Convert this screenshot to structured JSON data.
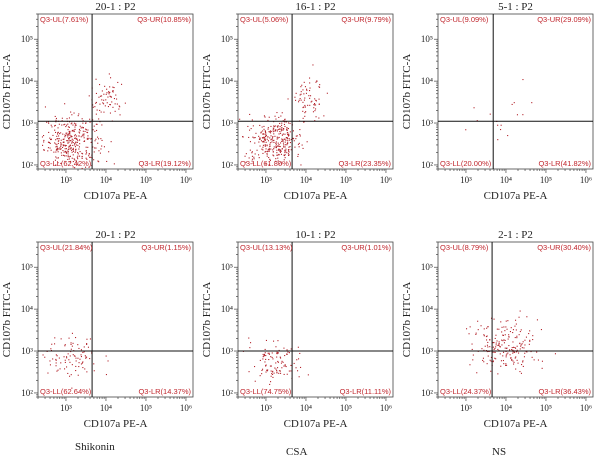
{
  "chart_data": [
    {
      "type": "scatter",
      "title": "20-1 : P2",
      "xlabel": "CD107a PE-A",
      "ylabel": "CD107b FITC-A",
      "x_scale": "log",
      "y_scale": "log",
      "xlim": [
        200,
        1500000
      ],
      "ylim": [
        80,
        400000
      ],
      "x_ticks": [
        "10³",
        "10⁴",
        "10⁵",
        "10⁶"
      ],
      "y_ticks": [
        "10²",
        "10³",
        "10⁴",
        "10⁵"
      ],
      "gate": {
        "x": 4500,
        "y": 1100
      },
      "quadrants": {
        "UL": "Q3-UL(7.61%)",
        "UR": "Q3-UR(10.85%)",
        "LL": "Q3-LL(62.42%)",
        "LR": "Q3-LR(19.12%)"
      },
      "percentages": {
        "UL": 7.61,
        "UR": 10.85,
        "LL": 62.42,
        "LR": 19.12
      },
      "clusters": [
        {
          "x": 1400,
          "y": 380,
          "sx": 0.35,
          "sy": 0.3,
          "n": 360
        },
        {
          "x": 10000,
          "y": 3500,
          "sx": 0.22,
          "sy": 0.25,
          "n": 70
        }
      ]
    },
    {
      "type": "scatter",
      "title": "16-1 : P2",
      "xlabel": "CD107a PE-A",
      "ylabel": "CD107b FITC-A",
      "x_scale": "log",
      "y_scale": "log",
      "xlim": [
        200,
        1500000
      ],
      "ylim": [
        80,
        400000
      ],
      "x_ticks": [
        "10³",
        "10⁴",
        "10⁵",
        "10⁶"
      ],
      "y_ticks": [
        "10²",
        "10³",
        "10⁴",
        "10⁵"
      ],
      "gate": {
        "x": 4500,
        "y": 1100
      },
      "quadrants": {
        "UL": "Q3-UL(5.06%)",
        "UR": "Q3-UR(9.79%)",
        "LL": "Q3-LL(61.80%)",
        "LR": "Q3-LR(23.35%)"
      },
      "percentages": {
        "UL": 5.06,
        "UR": 9.79,
        "LL": 61.8,
        "LR": 23.35
      },
      "clusters": [
        {
          "x": 1600,
          "y": 400,
          "sx": 0.33,
          "sy": 0.28,
          "n": 330
        },
        {
          "x": 11000,
          "y": 3800,
          "sx": 0.2,
          "sy": 0.25,
          "n": 70
        }
      ]
    },
    {
      "type": "scatter",
      "title": "5-1 : P2",
      "xlabel": "CD107a PE-A",
      "ylabel": "CD107b FITC-A",
      "x_scale": "log",
      "y_scale": "log",
      "xlim": [
        200,
        1500000
      ],
      "ylim": [
        80,
        400000
      ],
      "x_ticks": [
        "10³",
        "10⁴",
        "10⁵",
        "10⁶"
      ],
      "y_ticks": [
        "10²",
        "10³",
        "10⁴",
        "10⁵"
      ],
      "gate": {
        "x": 4800,
        "y": 1100
      },
      "quadrants": {
        "UL": "Q3-UL(9.09%)",
        "UR": "Q3-UR(29.09%)",
        "LL": "Q3-LL(20.00%)",
        "LR": "Q3-LR(41.82%)"
      },
      "percentages": {
        "UL": 9.09,
        "UR": 29.09,
        "LL": 20.0,
        "LR": 41.82
      },
      "clusters": [
        {
          "x": 8000,
          "y": 1500,
          "sx": 0.55,
          "sy": 0.45,
          "n": 16
        }
      ]
    },
    {
      "type": "scatter",
      "title": "20-1 : P2",
      "xlabel": "CD107a PE-A",
      "ylabel": "CD107b FITC-A",
      "x_scale": "log",
      "y_scale": "log",
      "xlim": [
        200,
        1500000
      ],
      "ylim": [
        80,
        400000
      ],
      "x_ticks": [
        "10³",
        "10⁴",
        "10⁵",
        "10⁶"
      ],
      "y_ticks": [
        "10²",
        "10³",
        "10⁴",
        "10⁵"
      ],
      "gate": {
        "x": 4500,
        "y": 1000
      },
      "quadrants": {
        "UL": "Q3-UL(21.84%)",
        "UR": "Q3-UR(1.15%)",
        "LL": "Q3-LL(62.64%)",
        "LR": "Q3-LR(14.37%)"
      },
      "percentages": {
        "UL": 21.84,
        "UR": 1.15,
        "LL": 62.64,
        "LR": 14.37
      },
      "clusters": [
        {
          "x": 1500,
          "y": 700,
          "sx": 0.35,
          "sy": 0.28,
          "n": 95
        }
      ]
    },
    {
      "type": "scatter",
      "title": "10-1 : P2",
      "xlabel": "CD107a PE-A",
      "ylabel": "CD107b FITC-A",
      "x_scale": "log",
      "y_scale": "log",
      "xlim": [
        200,
        1500000
      ],
      "ylim": [
        80,
        400000
      ],
      "x_ticks": [
        "10³",
        "10⁴",
        "10⁵",
        "10⁶"
      ],
      "y_ticks": [
        "10²",
        "10³",
        "10⁴",
        "10⁵"
      ],
      "gate": {
        "x": 4500,
        "y": 1000
      },
      "quadrants": {
        "UL": "Q3-UL(13.13%)",
        "UR": "Q3-UR(1.01%)",
        "LL": "Q3-LL(74.75%)",
        "LR": "Q3-LR(11.11%)"
      },
      "percentages": {
        "UL": 13.13,
        "UR": 1.01,
        "LL": 74.75,
        "LR": 11.11
      },
      "clusters": [
        {
          "x": 1700,
          "y": 550,
          "sx": 0.3,
          "sy": 0.25,
          "n": 110
        }
      ]
    },
    {
      "type": "scatter",
      "title": "2-1 : P2",
      "xlabel": "CD107a PE-A",
      "ylabel": "CD107b FITC-A",
      "x_scale": "log",
      "y_scale": "log",
      "xlim": [
        200,
        1500000
      ],
      "ylim": [
        80,
        400000
      ],
      "x_ticks": [
        "10³",
        "10⁴",
        "10⁵",
        "10⁶"
      ],
      "y_ticks": [
        "10²",
        "10³",
        "10⁴",
        "10⁵"
      ],
      "gate": {
        "x": 4500,
        "y": 1000
      },
      "quadrants": {
        "UL": "Q3-UL(8.79%)",
        "UR": "Q3-UR(30.40%)",
        "LL": "Q3-LL(24.37%)",
        "LR": "Q3-LR(36.43%)"
      },
      "percentages": {
        "UL": 8.79,
        "UR": 30.4,
        "LL": 24.37,
        "LR": 36.43
      },
      "clusters": [
        {
          "x": 9000,
          "y": 1400,
          "sx": 0.4,
          "sy": 0.35,
          "n": 210
        }
      ]
    }
  ],
  "group_labels": [
    "Shikonin",
    "CSA",
    "NS"
  ],
  "colors": {
    "dots": "#b3242c",
    "quadrant_text": "#c0262d",
    "gate_lines": "#111111"
  }
}
